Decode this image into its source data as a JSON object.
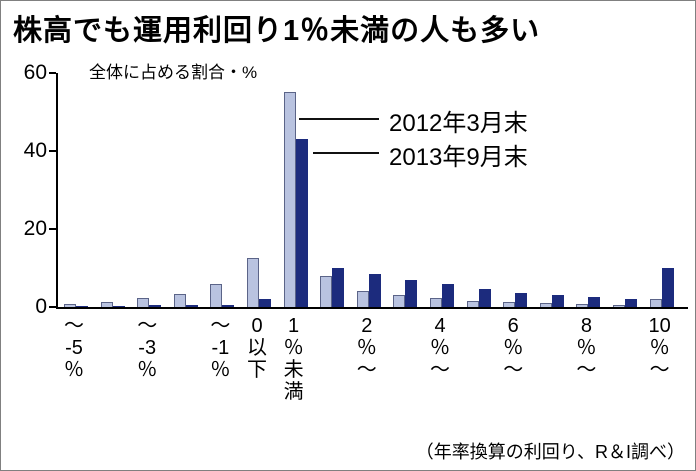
{
  "title": "株高でも運用利回り1％未満の人も多い",
  "axis_label": "全体に占める割合・%",
  "note": "（年率換算の利回り、R＆I調べ）",
  "y_ticks": [
    60,
    40,
    20,
    0
  ],
  "chart_data": {
    "type": "bar",
    "title": "株高でも運用利回り1％未満の人も多い",
    "ylabel": "全体に占める割合・%",
    "ylim": [
      0,
      60
    ],
    "grid": false,
    "legend_position": "top-right-with-pointer-lines",
    "categories": [
      "〜-5％",
      "",
      "〜-3％",
      "",
      "〜-1％",
      "0以下",
      "1％未満",
      "",
      "2％〜",
      "",
      "4％〜",
      "",
      "6％〜",
      "",
      "8％〜",
      "",
      "10％〜"
    ],
    "labeled_positions": [
      0,
      2,
      4,
      5,
      6,
      8,
      10,
      12,
      14,
      16
    ],
    "category_segments": [
      [
        "〜",
        "-5",
        "％"
      ],
      [
        "〜",
        "-3",
        "％"
      ],
      [
        "〜",
        "-1",
        "％"
      ],
      [
        "0",
        "以",
        "下"
      ],
      [
        "1",
        "％",
        "未",
        "満"
      ],
      [
        "2",
        "％",
        "〜"
      ],
      [
        "4",
        "％",
        "〜"
      ],
      [
        "6",
        "％",
        "〜"
      ],
      [
        "8",
        "％",
        "〜"
      ],
      [
        "10",
        "％",
        "〜"
      ]
    ],
    "series": [
      {
        "name": "2012年3月末",
        "color": "#b9c3e0",
        "values": [
          0.7,
          1.2,
          2.2,
          3.3,
          6,
          12.5,
          55,
          8,
          4,
          3,
          2.2,
          1.5,
          1.2,
          1,
          0.8,
          0.6,
          2
        ]
      },
      {
        "name": "2013年9月末",
        "color": "#1c2b7d",
        "values": [
          0.3,
          0.3,
          0.4,
          0.5,
          0.6,
          2,
          43,
          10,
          8.5,
          7,
          6,
          4.5,
          3.5,
          3,
          2.5,
          2,
          10
        ]
      }
    ],
    "note": "（年率換算の利回り、R＆I調べ）"
  }
}
